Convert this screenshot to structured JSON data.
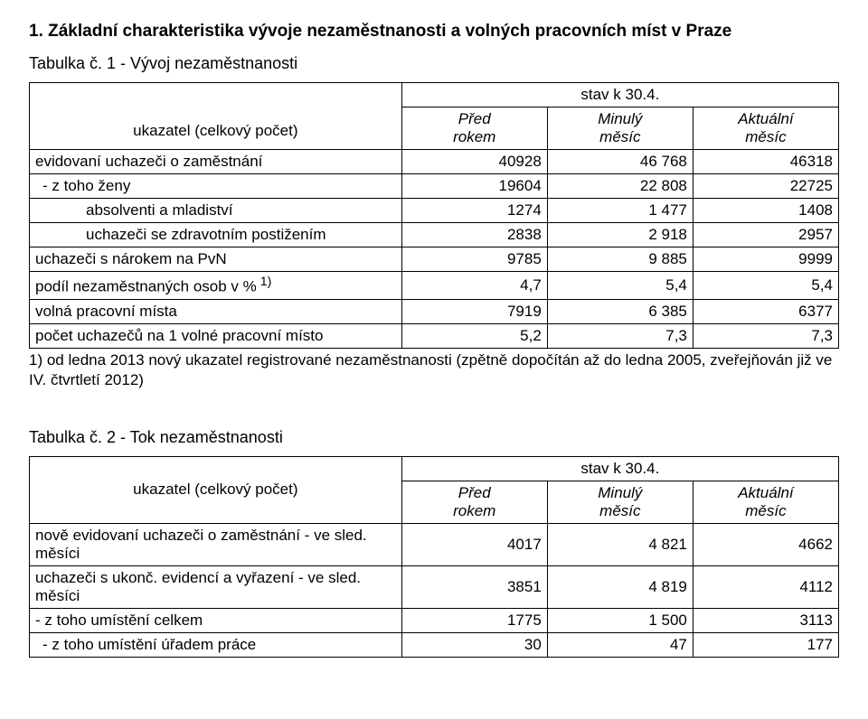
{
  "section1": {
    "title": "1. Základní charakteristika vývoje nezaměstnanosti a volných pracovních míst  v Praze"
  },
  "table1": {
    "caption": "Tabulka č. 1 - Vývoj nezaměstnanosti",
    "stav_label": "stav k 30.4.",
    "ukazatel_label": "ukazatel (celkový počet)",
    "col1": "Před rokem",
    "col1_line1": "Před",
    "col1_line2": "rokem",
    "col2": "Minulý měsíc",
    "col2_line1": "Minulý",
    "col2_line2": "měsíc",
    "col3": "Aktuální měsíc",
    "col3_line1": "Aktuální",
    "col3_line2": "měsíc",
    "rows": [
      {
        "label": "evidovaní uchazeči o zaměstnání",
        "v1": "40928",
        "v2": "46 768",
        "v3": "46318",
        "indent": 0
      },
      {
        "label": " - z toho   ženy",
        "v1": "19604",
        "v2": "22 808",
        "v3": "22725",
        "indent": 1
      },
      {
        "label": "absolventi a mladiství",
        "v1": "1274",
        "v2": "1 477",
        "v3": "1408",
        "indent": 2
      },
      {
        "label": "uchazeči se zdravotním postižením",
        "v1": "2838",
        "v2": "2 918",
        "v3": "2957",
        "indent": 2
      },
      {
        "label": "uchazeči s nárokem na PvN",
        "v1": "9785",
        "v2": "9 885",
        "v3": "9999",
        "indent": 0
      },
      {
        "label_html": "podíl nezaměstnaných osob v %<sup> 1)</sup>",
        "label": "podíl nezaměstnaných osob v % 1)",
        "v1": "4,7",
        "v2": "5,4",
        "v3": "5,4",
        "indent": 0
      },
      {
        "label": "volná pracovní místa",
        "v1": "7919",
        "v2": "6 385",
        "v3": "6377",
        "indent": 0
      },
      {
        "label": "počet uchazečů na 1 volné pracovní místo",
        "v1": "5,2",
        "v2": "7,3",
        "v3": "7,3",
        "indent": 0
      }
    ],
    "footnote": "1) od ledna 2013 nový ukazatel registrované nezaměstnanosti (zpětně dopočítán až do ledna 2005, zveřejňován již ve IV. čtvrtletí 2012)"
  },
  "table2": {
    "caption": "Tabulka č. 2 - Tok nezaměstnanosti",
    "stav_label": "stav k 30.4.",
    "ukazatel_label": "ukazatel (celkový počet)",
    "col1_line1": "Před",
    "col1_line2": "rokem",
    "col2_line1": "Minulý",
    "col2_line2": "měsíc",
    "col3_line1": "Aktuální",
    "col3_line2": "měsíc",
    "rows": [
      {
        "label": "nově evidovaní uchazeči o zaměstnání - ve sled. měsíci",
        "v1": "4017",
        "v2": "4 821",
        "v3": "4662",
        "indent": 0
      },
      {
        "label": "uchazeči s ukonč. evidencí a vyřazení - ve sled. měsíci",
        "v1": "3851",
        "v2": "4 819",
        "v3": "4112",
        "indent": 0
      },
      {
        "label": "- z toho umístění celkem",
        "v1": "1775",
        "v2": "1 500",
        "v3": "3113",
        "indent": 0
      },
      {
        "label": " - z toho umístění úřadem práce",
        "v1": "30",
        "v2": "47",
        "v3": "177",
        "indent": 1
      }
    ]
  }
}
